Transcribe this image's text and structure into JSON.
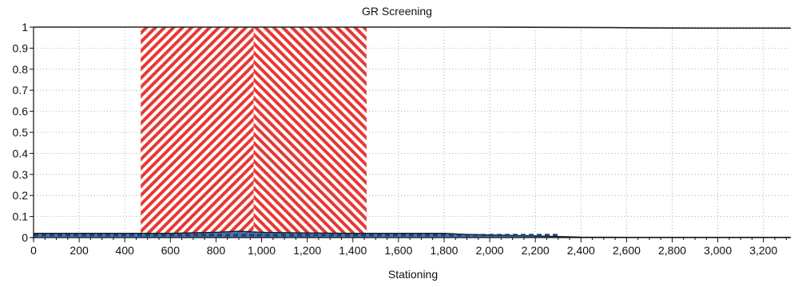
{
  "chart_data": {
    "type": "area",
    "title": "GR Screening",
    "xlabel": "Stationing",
    "ylabel": "",
    "xlim": [
      0,
      3320
    ],
    "ylim": [
      0,
      1
    ],
    "grid": true,
    "x_ticks": [
      0,
      200,
      400,
      600,
      800,
      1000,
      1200,
      1400,
      1600,
      1800,
      2000,
      2200,
      2400,
      2600,
      2800,
      3000,
      3200
    ],
    "x_tick_labels": [
      "0",
      "200",
      "400",
      "600",
      "800",
      "1,000",
      "1,200",
      "1,400",
      "1,600",
      "1,800",
      "2,000",
      "2,200",
      "2,400",
      "2,600",
      "2,800",
      "3,000",
      "3,200"
    ],
    "y_ticks": [
      0,
      0.1,
      0.2,
      0.3,
      0.4,
      0.5,
      0.6,
      0.7,
      0.8,
      0.9,
      1
    ],
    "y_tick_labels": [
      "0",
      "0.1",
      "0.2",
      "0.3",
      "0.4",
      "0.5",
      "0.6",
      "0.7",
      "0.8",
      "0.9",
      "1"
    ],
    "highlight_region": {
      "x_start": 470,
      "x_end": 1460,
      "y_top": 1,
      "color": "#e53935",
      "pattern": "chevron-hatch"
    },
    "series": [
      {
        "color": "#2f6fb5",
        "outline_color": "#1a1a1a",
        "x": [
          0,
          200,
          400,
          600,
          800,
          900,
          1000,
          1200,
          1400,
          1600,
          1800,
          1900,
          2000,
          2100,
          2200,
          2300,
          2400,
          2600,
          2800,
          3000,
          3200,
          3320
        ],
        "y": [
          0.02,
          0.02,
          0.02,
          0.02,
          0.025,
          0.03,
          0.025,
          0.022,
          0.02,
          0.02,
          0.02,
          0.015,
          0.012,
          0.01,
          0.008,
          0.005,
          0.002,
          0.001,
          0.001,
          0.001,
          0.001,
          0.001
        ]
      },
      {
        "color": "#222222",
        "x": [
          0,
          500,
          1000,
          1500,
          2000,
          2500,
          2700,
          3000,
          3320
        ],
        "y": [
          1,
          1,
          1,
          1,
          1,
          0.998,
          0.996,
          0.995,
          0.995
        ]
      }
    ]
  }
}
